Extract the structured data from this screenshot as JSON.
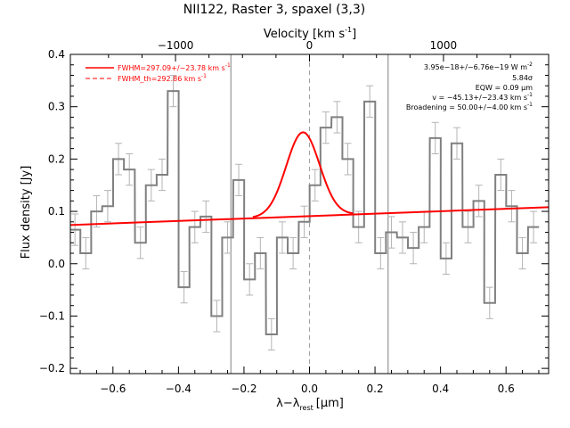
{
  "chart_data": {
    "type": "line",
    "title": "NII122, Raster 3, spaxel (3,3)",
    "xlabel": "λ−λ",
    "xlabel_sub": "rest",
    "xlabel_unit": "[μm]",
    "ylabel": "Flux density [Jy]",
    "top_xlabel": "Velocity [km s",
    "top_xlabel_sup": "-1",
    "top_xlabel_end": "]",
    "xlim": [
      -0.73,
      0.73
    ],
    "ylim": [
      -0.21,
      0.4
    ],
    "x_ticks": [
      -0.6,
      -0.4,
      -0.2,
      0.0,
      0.2,
      0.4,
      0.6
    ],
    "x_tick_labels": [
      "−0.6",
      "−0.4",
      "−0.2",
      "0.0",
      "0.2",
      "0.4",
      "0.6"
    ],
    "y_ticks": [
      -0.2,
      -0.1,
      0.0,
      0.1,
      0.2,
      0.3,
      0.4
    ],
    "y_tick_labels": [
      "−0.2",
      "−0.1",
      "0.0",
      "0.1",
      "0.2",
      "0.3",
      "0.4"
    ],
    "top_ticks_velocity": [
      -1000,
      0,
      1000
    ],
    "top_tick_labels": [
      "−1000",
      "0",
      "1000"
    ],
    "velocity_per_micron": 2445,
    "legend": {
      "position": "top-left",
      "entries": [
        {
          "label": "FWHM=297.09+/−23.78 km s",
          "sup": "-1",
          "style": "solid",
          "color": "#ff0000"
        },
        {
          "label": "FWHM_th=292.86 km s",
          "sup": "-1",
          "style": "dashed",
          "color": "#ff0000"
        }
      ]
    },
    "annotations": [
      {
        "text": "3.95e−18+/−6.76e−19 W m",
        "sup": "-2"
      },
      {
        "text": "5.84σ",
        "sup": ""
      },
      {
        "text": "EQW = 0.09 μm",
        "sup": ""
      },
      {
        "text": "v = −45.13+/−23.43 km s",
        "sup": "-1"
      },
      {
        "text": "Broadening = 50.00+/−4.00 km s",
        "sup": "-1"
      }
    ],
    "vertical_lines": [
      -0.24,
      0.0,
      0.24
    ],
    "rest_line": 0.0,
    "series": [
      {
        "kind": "step",
        "color": "#808080",
        "bin_width": 0.0333,
        "x": [
          -0.716,
          -0.683,
          -0.65,
          -0.616,
          -0.583,
          -0.55,
          -0.516,
          -0.483,
          -0.45,
          -0.416,
          -0.383,
          -0.35,
          -0.316,
          -0.283,
          -0.25,
          -0.216,
          -0.183,
          -0.15,
          -0.116,
          -0.083,
          -0.05,
          -0.016,
          0.017,
          0.05,
          0.084,
          0.117,
          0.15,
          0.184,
          0.217,
          0.25,
          0.284,
          0.317,
          0.35,
          0.384,
          0.417,
          0.45,
          0.484,
          0.517,
          0.55,
          0.584,
          0.617,
          0.65,
          0.684
        ],
        "y": [
          0.065,
          0.02,
          0.1,
          0.11,
          0.2,
          0.18,
          0.04,
          0.15,
          0.17,
          0.33,
          -0.045,
          0.07,
          0.09,
          -0.1,
          0.05,
          0.16,
          -0.03,
          0.02,
          -0.135,
          0.05,
          0.02,
          0.08,
          0.15,
          0.26,
          0.28,
          0.2,
          0.07,
          0.31,
          0.02,
          0.06,
          0.05,
          0.03,
          0.07,
          0.24,
          0.01,
          0.23,
          0.07,
          0.12,
          -0.075,
          0.17,
          0.11,
          0.02,
          0.07
        ],
        "err": [
          0.03,
          0.03,
          0.03,
          0.03,
          0.03,
          0.03,
          0.03,
          0.03,
          0.03,
          0.03,
          0.03,
          0.03,
          0.03,
          0.03,
          0.03,
          0.03,
          0.03,
          0.03,
          0.03,
          0.03,
          0.03,
          0.03,
          0.03,
          0.03,
          0.03,
          0.03,
          0.03,
          0.03,
          0.03,
          0.03,
          0.03,
          0.03,
          0.03,
          0.03,
          0.03,
          0.03,
          0.03,
          0.03,
          0.03,
          0.03,
          0.03,
          0.03,
          0.03
        ]
      },
      {
        "kind": "gaussian_fit",
        "color": "#ff0000",
        "center": -0.02,
        "amplitude": 0.16,
        "fwhm": 0.12,
        "continuum_at_x0": 0.0915,
        "continuum_slope": 0.0235
      },
      {
        "kind": "continuum",
        "color": "#ff0000",
        "x": [
          -0.73,
          0.73
        ],
        "y": [
          0.074,
          0.108
        ]
      }
    ]
  }
}
